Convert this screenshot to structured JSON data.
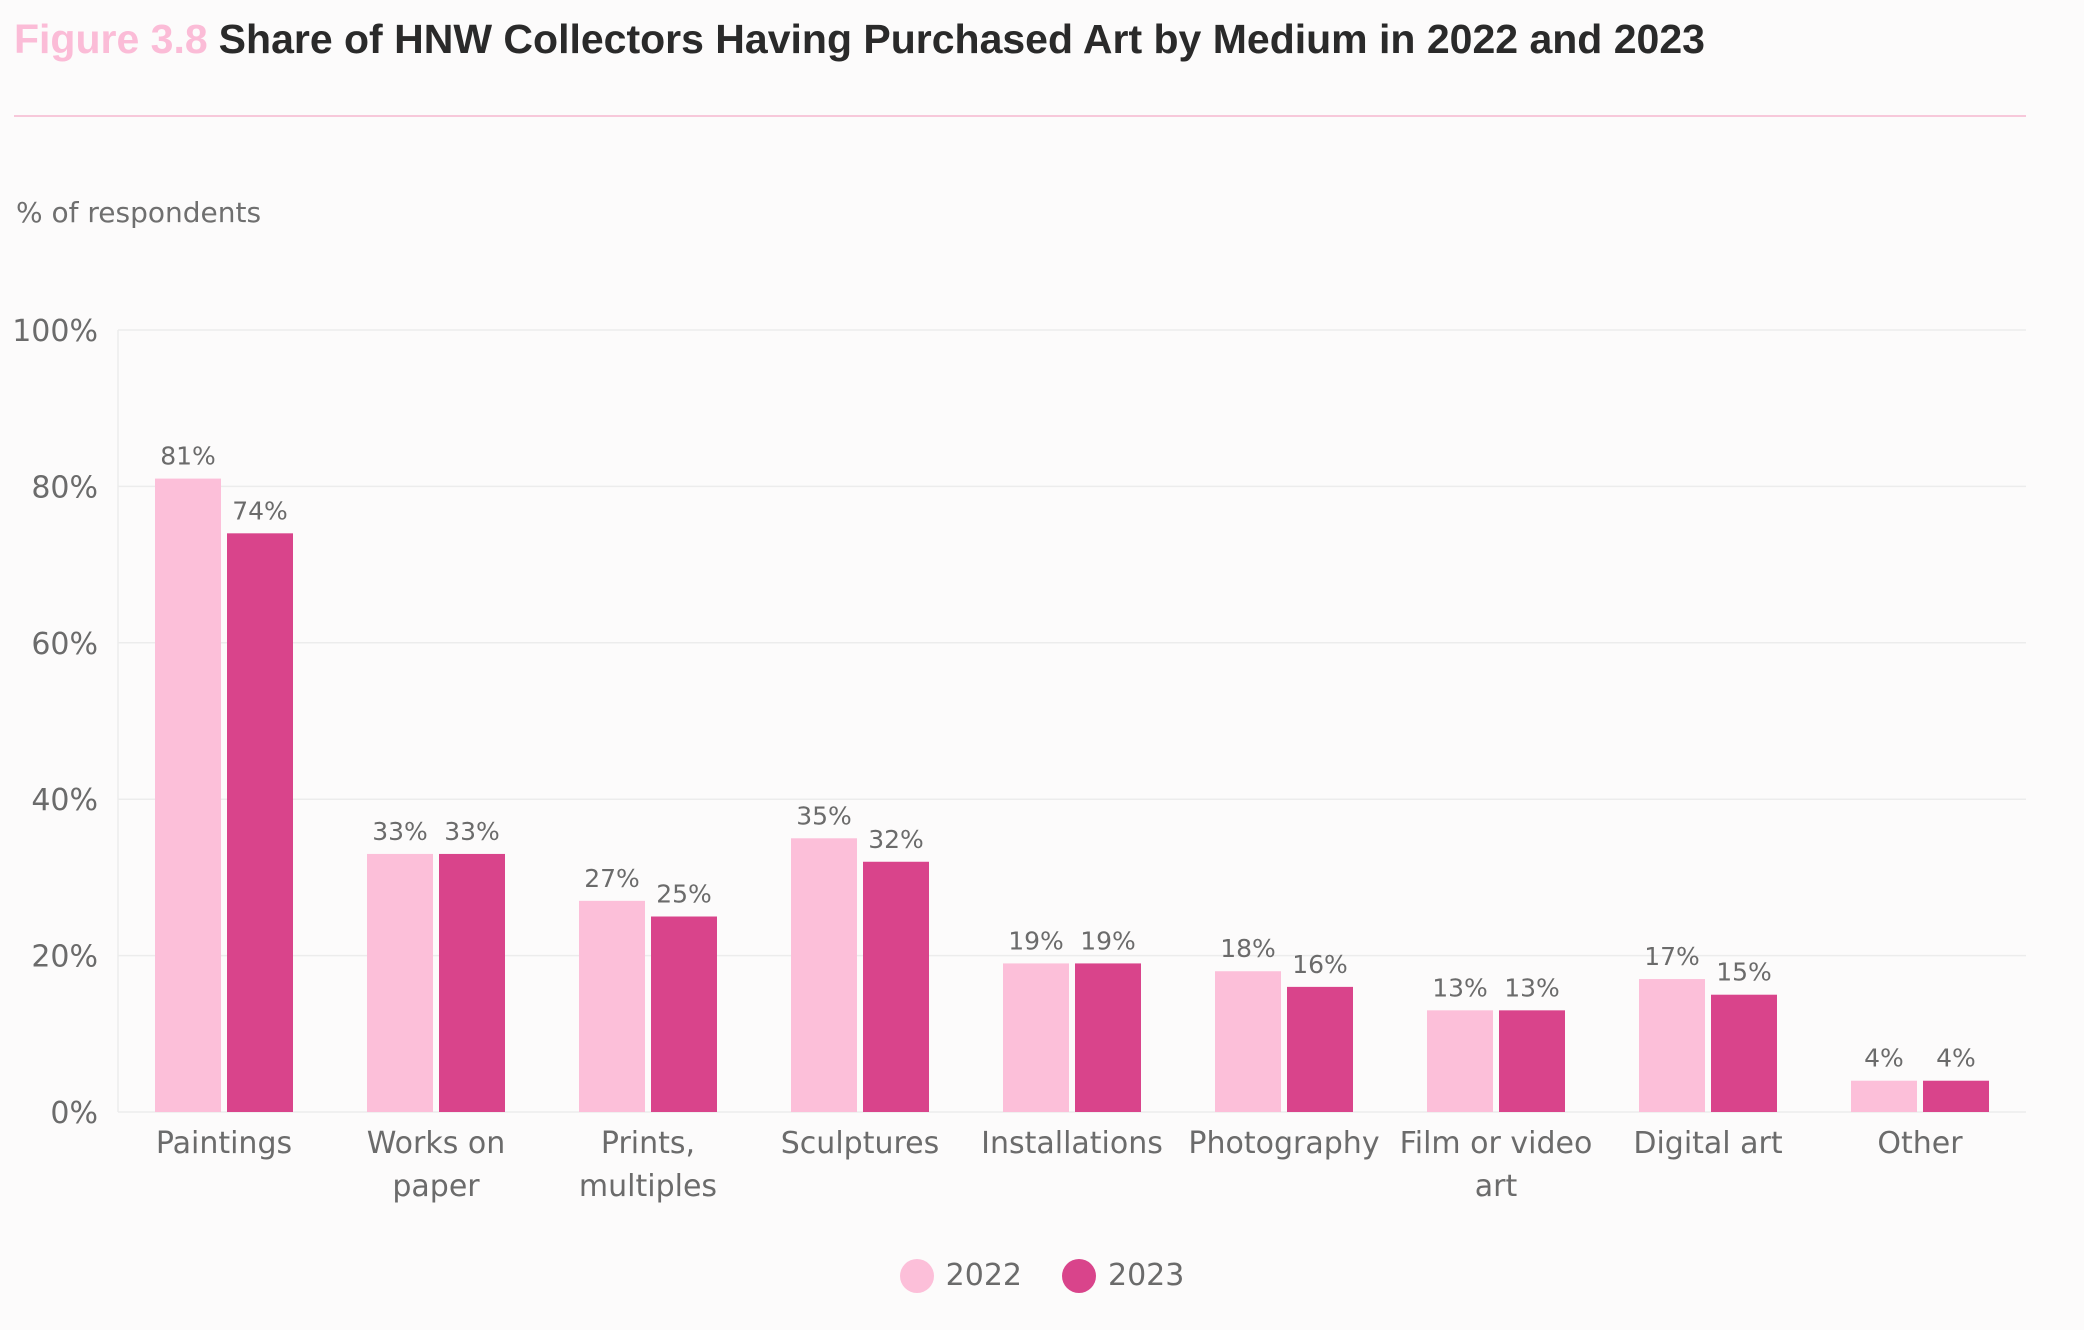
{
  "header": {
    "figure_label": "Figure 3.8",
    "title": "Share of HNW Collectors Having Purchased Art by Medium in 2022 and 2023"
  },
  "colors": {
    "figure_label": "#fbbcd7",
    "rule": "#f7c8da",
    "series_2022": "#fcbfd9",
    "series_2023": "#d9448b"
  },
  "chart_data": {
    "type": "bar",
    "ylabel": "% of respondents",
    "ylim": [
      0,
      100
    ],
    "yticks": [
      "0%",
      "20%",
      "40%",
      "60%",
      "80%",
      "100%"
    ],
    "grid": true,
    "legend_position": "bottom-center",
    "categories": [
      "Paintings",
      "Works on paper",
      "Prints, multiples",
      "Sculptures",
      "Installations",
      "Photography",
      "Film or video art",
      "Digital art",
      "Other"
    ],
    "series": [
      {
        "name": "2022",
        "values": [
          81,
          33,
          27,
          35,
          19,
          18,
          13,
          17,
          4
        ]
      },
      {
        "name": "2023",
        "values": [
          74,
          33,
          25,
          32,
          19,
          16,
          13,
          15,
          4
        ]
      }
    ]
  }
}
